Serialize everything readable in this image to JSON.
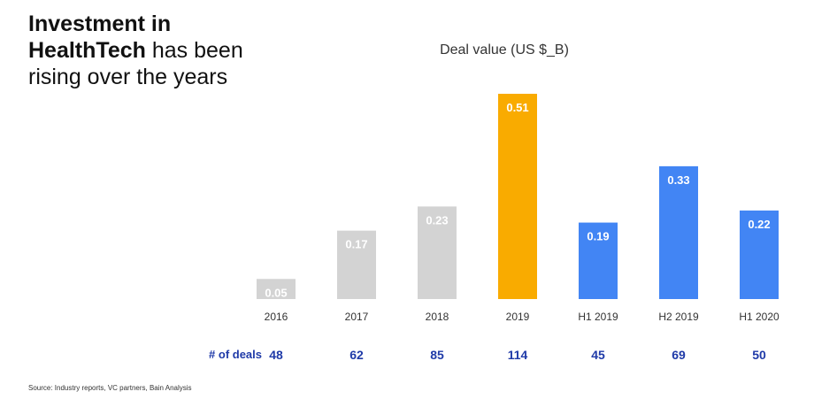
{
  "header": {
    "title_bold_1": "Investment in",
    "title_bold_2": "HealthTech",
    "title_rest_2": " has been",
    "title_line_3": "rising over the years",
    "subtitle": "Deal value (US $_B)"
  },
  "deals": {
    "label": "# of deals"
  },
  "footer": {
    "source": "Source: Industry reports, VC partners, Bain Analysis"
  },
  "colors": {
    "gray": "#d3d3d3",
    "orange": "#f9ab00",
    "blue": "#4285f4",
    "deals_text": "#1f3aa8"
  },
  "chart_data": {
    "type": "bar",
    "title": "Deal value (US $_B)",
    "categories": [
      "2016",
      "2017",
      "2018",
      "2019",
      "H1 2019",
      "H2 2019",
      "H1 2020"
    ],
    "values": [
      0.05,
      0.17,
      0.23,
      0.51,
      0.19,
      0.33,
      0.22
    ],
    "value_labels": [
      "0.05",
      "0.17",
      "0.23",
      "0.51",
      "0.19",
      "0.33",
      "0.22"
    ],
    "bar_colors": [
      "gray",
      "gray",
      "gray",
      "orange",
      "blue",
      "blue",
      "blue"
    ],
    "deal_counts": [
      "48",
      "62",
      "85",
      "114",
      "45",
      "69",
      "50"
    ],
    "ylim": [
      0,
      0.51
    ],
    "grid": false,
    "legend": "none"
  }
}
